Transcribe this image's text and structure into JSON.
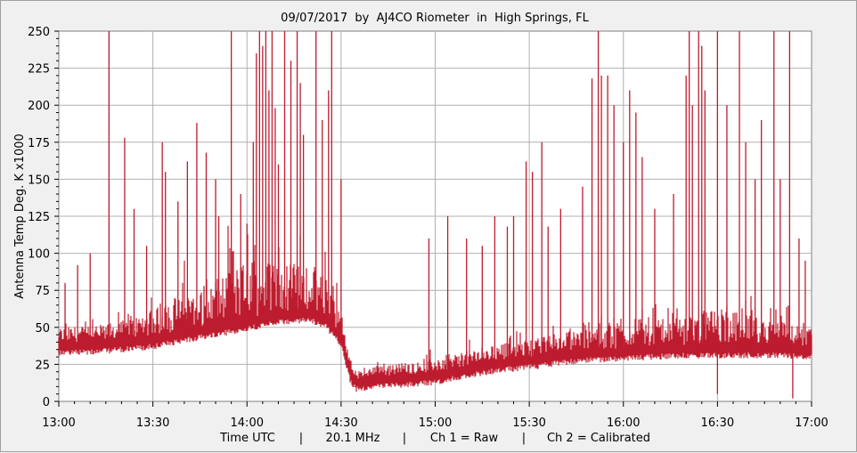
{
  "chart_data": {
    "type": "line",
    "title": "09/07/2017  by  AJ4CO Riometer  in  High Springs, FL",
    "ylabel": "Antenna Temp Deg. K x1000",
    "xlabel_parts": [
      "Time UTC",
      "|",
      "20.1 MHz",
      "|",
      "Ch 1 = Raw",
      "|",
      "Ch 2 = Calibrated"
    ],
    "x_ticks": [
      "13:00",
      "13:30",
      "14:00",
      "14:30",
      "15:00",
      "15:30",
      "16:00",
      "16:30",
      "17:00"
    ],
    "y_ticks": [
      "0",
      "25",
      "50",
      "75",
      "100",
      "125",
      "150",
      "175",
      "200",
      "225",
      "250"
    ],
    "xlim_minutes": [
      0,
      240
    ],
    "ylim": [
      0,
      250
    ],
    "grid": true,
    "series_color": "#bd1c2e",
    "series": [
      {
        "baseline": [
          [
            0,
            40
          ],
          [
            10,
            40
          ],
          [
            20,
            42
          ],
          [
            30,
            44
          ],
          [
            40,
            48
          ],
          [
            50,
            52
          ],
          [
            60,
            56
          ],
          [
            70,
            60
          ],
          [
            80,
            62
          ],
          [
            85,
            58
          ],
          [
            90,
            45
          ],
          [
            93,
            20
          ],
          [
            95,
            15
          ],
          [
            100,
            17
          ],
          [
            110,
            18
          ],
          [
            120,
            20
          ],
          [
            130,
            24
          ],
          [
            140,
            28
          ],
          [
            150,
            30
          ],
          [
            160,
            33
          ],
          [
            170,
            35
          ],
          [
            180,
            36
          ],
          [
            190,
            37
          ],
          [
            200,
            38
          ],
          [
            210,
            38
          ],
          [
            220,
            38
          ],
          [
            230,
            38
          ],
          [
            240,
            37
          ]
        ],
        "noise_amp": [
          [
            0,
            10
          ],
          [
            20,
            12
          ],
          [
            30,
            18
          ],
          [
            40,
            25
          ],
          [
            50,
            30
          ],
          [
            60,
            40
          ],
          [
            70,
            35
          ],
          [
            80,
            30
          ],
          [
            88,
            25
          ],
          [
            92,
            8
          ],
          [
            95,
            5
          ],
          [
            110,
            8
          ],
          [
            130,
            10
          ],
          [
            150,
            12
          ],
          [
            170,
            15
          ],
          [
            180,
            20
          ],
          [
            200,
            18
          ],
          [
            210,
            25
          ],
          [
            220,
            20
          ],
          [
            240,
            12
          ]
        ],
        "spikes": [
          [
            2,
            80
          ],
          [
            6,
            92
          ],
          [
            10,
            100
          ],
          [
            16,
            250
          ],
          [
            21,
            178
          ],
          [
            24,
            130
          ],
          [
            28,
            105
          ],
          [
            33,
            175
          ],
          [
            34,
            155
          ],
          [
            38,
            135
          ],
          [
            41,
            162
          ],
          [
            44,
            188
          ],
          [
            47,
            168
          ],
          [
            50,
            150
          ],
          [
            51,
            125
          ],
          [
            55,
            250
          ],
          [
            58,
            140
          ],
          [
            60,
            120
          ],
          [
            62,
            175
          ],
          [
            63,
            235
          ],
          [
            64,
            250
          ],
          [
            65,
            240
          ],
          [
            66,
            250
          ],
          [
            67,
            210
          ],
          [
            68,
            250
          ],
          [
            69,
            198
          ],
          [
            70,
            160
          ],
          [
            72,
            250
          ],
          [
            74,
            230
          ],
          [
            76,
            250
          ],
          [
            77,
            215
          ],
          [
            78,
            180
          ],
          [
            82,
            250
          ],
          [
            84,
            190
          ],
          [
            86,
            210
          ],
          [
            87,
            250
          ],
          [
            90,
            150
          ],
          [
            118,
            110
          ],
          [
            124,
            125
          ],
          [
            130,
            110
          ],
          [
            135,
            105
          ],
          [
            139,
            125
          ],
          [
            143,
            118
          ],
          [
            145,
            125
          ],
          [
            149,
            162
          ],
          [
            151,
            155
          ],
          [
            154,
            175
          ],
          [
            156,
            118
          ],
          [
            160,
            130
          ],
          [
            167,
            145
          ],
          [
            170,
            218
          ],
          [
            172,
            250
          ],
          [
            173,
            220
          ],
          [
            175,
            220
          ],
          [
            177,
            200
          ],
          [
            180,
            175
          ],
          [
            182,
            210
          ],
          [
            184,
            195
          ],
          [
            186,
            165
          ],
          [
            190,
            130
          ],
          [
            196,
            140
          ],
          [
            200,
            220
          ],
          [
            201,
            250
          ],
          [
            202,
            200
          ],
          [
            204,
            250
          ],
          [
            205,
            240
          ],
          [
            206,
            210
          ],
          [
            210,
            250
          ],
          [
            213,
            200
          ],
          [
            217,
            250
          ],
          [
            219,
            175
          ],
          [
            222,
            150
          ],
          [
            224,
            190
          ],
          [
            228,
            250
          ],
          [
            230,
            150
          ],
          [
            233,
            250
          ],
          [
            236,
            110
          ],
          [
            238,
            95
          ]
        ],
        "dips": [
          [
            210,
            5
          ],
          [
            234,
            2
          ]
        ]
      }
    ]
  }
}
